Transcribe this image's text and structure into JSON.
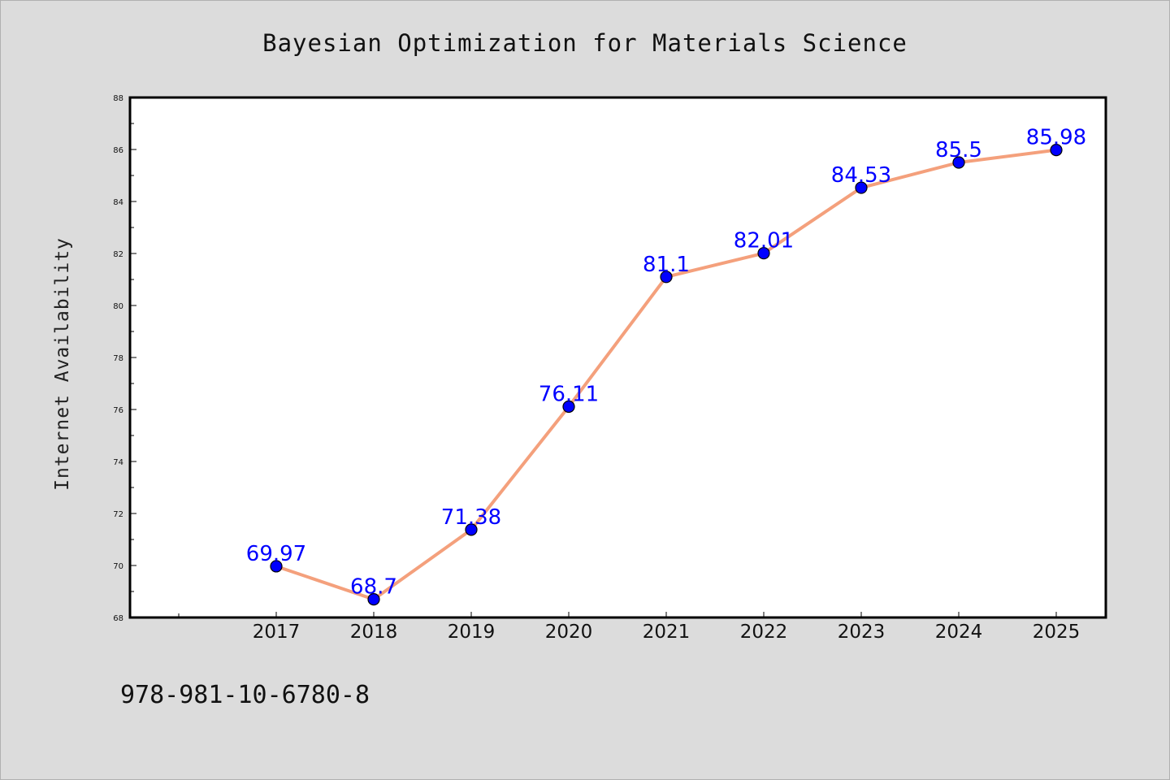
{
  "chart_data": {
    "type": "line",
    "title": "Bayesian Optimization for Materials Science",
    "xlabel": "",
    "ylabel": "Internet Availability",
    "categories": [
      "2017",
      "2018",
      "2019",
      "2020",
      "2021",
      "2022",
      "2023",
      "2024",
      "2025"
    ],
    "series": [
      {
        "values": [
          69.97,
          68.7,
          71.38,
          76.11,
          81.1,
          82.01,
          84.53,
          85.5,
          85.98
        ],
        "data_labels": [
          "69.97",
          "68.7",
          "71.38",
          "76.11",
          "81.1",
          "82.01",
          "84.53",
          "85.5",
          "85.98"
        ],
        "line_color": "#f4a07c",
        "marker_color": "#0000ff"
      }
    ],
    "ylim": [
      68,
      88
    ],
    "yticks": [
      "68",
      "70",
      "72",
      "74",
      "76",
      "78",
      "80",
      "82",
      "84",
      "86",
      "88"
    ],
    "grid": false,
    "legend": "none",
    "label_color": "#0000ff",
    "background_color": "#dcdcdc",
    "plot_background_color": "#ffffff"
  },
  "footer": {
    "isbn": "978-981-10-6780-8"
  }
}
